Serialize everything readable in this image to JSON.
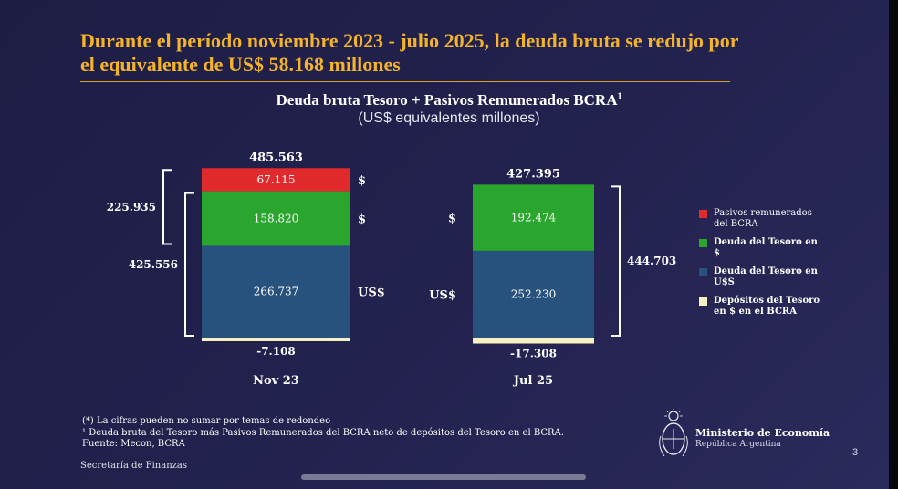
{
  "headline": "Durante el período noviembre 2023 - julio 2025, la deuda bruta se redujo por el equivalente de US$ 58.168 millones",
  "chart_title": "Deuda bruta Tesoro + Pasivos Remunerados BCRA",
  "chart_title_sup": "1",
  "chart_subtitle": "(US$ equivalentes millones)",
  "colors": {
    "pasivos": "#e02a2b",
    "deuda_pesos": "#2aa52d",
    "deuda_usd": "#28527e",
    "depositos": "#f7f0c2",
    "headline": "#f3b32b"
  },
  "chart_data": {
    "type": "bar",
    "stacked": true,
    "categories": [
      "Nov 23",
      "Jul 25"
    ],
    "series": [
      {
        "name": "Depósitos del Tesoro en $ en el BCRA",
        "key": "depositos",
        "values": [
          -7.108,
          -17.308
        ],
        "labels": [
          "-7.108",
          "-17.308"
        ]
      },
      {
        "name": "Deuda del Tesoro en U$S",
        "key": "deuda_usd",
        "values": [
          266.737,
          252.23
        ],
        "labels": [
          "266.737",
          "252.230"
        ]
      },
      {
        "name": "Deuda del Tesoro en $",
        "key": "deuda_pesos",
        "values": [
          158.82,
          192.474
        ],
        "labels": [
          "158.820",
          "192.474"
        ]
      },
      {
        "name": "Pasivos remunerados del BCRA",
        "key": "pasivos",
        "values": [
          67.115,
          0
        ],
        "labels": [
          "67.115",
          ""
        ]
      }
    ],
    "totals": [
      "485.563",
      "427.395"
    ],
    "brackets": [
      {
        "category": "Nov 23",
        "label": "225.935",
        "from": "deuda_pesos",
        "to": "pasivos",
        "side": "left"
      },
      {
        "category": "Nov 23",
        "label": "425.556",
        "from": "deuda_usd",
        "to": "deuda_pesos",
        "side": "left"
      },
      {
        "category": "Jul 25",
        "label": "444.703",
        "from": "deuda_usd",
        "to": "deuda_pesos",
        "side": "right"
      }
    ],
    "currency_tags": [
      {
        "category": "Nov 23",
        "segment": "pasivos",
        "text": "$",
        "side": "right"
      },
      {
        "category": "Nov 23",
        "segment": "deuda_pesos",
        "text": "$",
        "side": "right"
      },
      {
        "category": "Nov 23",
        "segment": "deuda_usd",
        "text": "US$",
        "side": "right"
      },
      {
        "category": "Jul 25",
        "segment": "deuda_pesos",
        "text": "$",
        "side": "left"
      },
      {
        "category": "Jul 25",
        "segment": "deuda_usd",
        "text": "US$",
        "side": "left"
      }
    ]
  },
  "legend": [
    {
      "key": "pasivos",
      "label": "Pasivos remunerados del BCRA"
    },
    {
      "key": "deuda_pesos",
      "label": "Deuda del Tesoro en $"
    },
    {
      "key": "deuda_usd",
      "label": "Deuda del Tesoro en U$S"
    },
    {
      "key": "depositos",
      "label": "Depósitos del Tesoro en $ en el BCRA"
    }
  ],
  "footnotes": [
    "(*) La cifras pueden no sumar por temas de redondeo",
    "¹ Deuda bruta del Tesoro más Pasivos Remunerados del BCRA neto de depósitos del Tesoro en el BCRA.",
    "Fuente: Mecon, BCRA"
  ],
  "department": "Secretaría de Finanzas",
  "ministry": {
    "name": "Ministerio de Economía",
    "country": "República Argentina"
  },
  "page_number": "3"
}
